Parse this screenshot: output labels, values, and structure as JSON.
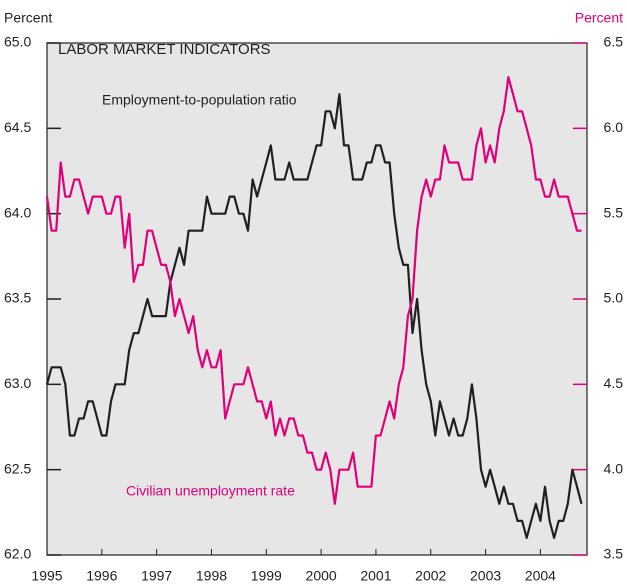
{
  "chart_data": {
    "type": "line",
    "title": "LABOR MARKET INDICATORS",
    "y_label": "Percent",
    "y2_label": "Percent",
    "annotations": [
      "Employment-to-population ratio",
      "Civilian unemployment rate"
    ],
    "x": [
      1995,
      1995.083,
      1995.167,
      1995.25,
      1995.333,
      1995.417,
      1995.5,
      1995.583,
      1995.667,
      1995.75,
      1995.833,
      1995.917,
      1996,
      1996.083,
      1996.167,
      1996.25,
      1996.333,
      1996.417,
      1996.5,
      1996.583,
      1996.667,
      1996.75,
      1996.833,
      1996.917,
      1997,
      1997.083,
      1997.167,
      1997.25,
      1997.333,
      1997.417,
      1997.5,
      1997.583,
      1997.667,
      1997.75,
      1997.833,
      1997.917,
      1998,
      1998.083,
      1998.167,
      1998.25,
      1998.333,
      1998.417,
      1998.5,
      1998.583,
      1998.667,
      1998.75,
      1998.833,
      1998.917,
      1999,
      1999.083,
      1999.167,
      1999.25,
      1999.333,
      1999.417,
      1999.5,
      1999.583,
      1999.667,
      1999.75,
      1999.833,
      1999.917,
      2000,
      2000.083,
      2000.167,
      2000.25,
      2000.333,
      2000.417,
      2000.5,
      2000.583,
      2000.667,
      2000.75,
      2000.833,
      2000.917,
      2001,
      2001.083,
      2001.167,
      2001.25,
      2001.333,
      2001.417,
      2001.5,
      2001.583,
      2001.667,
      2001.75,
      2001.833,
      2001.917,
      2002,
      2002.083,
      2002.167,
      2002.25,
      2002.333,
      2002.417,
      2002.5,
      2002.583,
      2002.667,
      2002.75,
      2002.833,
      2002.917,
      2003,
      2003.083,
      2003.167,
      2003.25,
      2003.333,
      2003.417,
      2003.5,
      2003.583,
      2003.667,
      2003.75,
      2003.833,
      2003.917,
      2004,
      2004.083,
      2004.167,
      2004.25,
      2004.333,
      2004.417,
      2004.5,
      2004.583,
      2004.667,
      2004.75
    ],
    "series": [
      {
        "name": "Employment-to-population ratio",
        "color": "#231f20",
        "axis": "y",
        "values": [
          63.0,
          63.1,
          63.1,
          63.1,
          63.0,
          62.7,
          62.7,
          62.8,
          62.8,
          62.9,
          62.9,
          62.8,
          62.7,
          62.7,
          62.9,
          63.0,
          63.0,
          63.0,
          63.2,
          63.3,
          63.3,
          63.4,
          63.5,
          63.4,
          63.4,
          63.4,
          63.4,
          63.6,
          63.7,
          63.8,
          63.7,
          63.9,
          63.9,
          63.9,
          63.9,
          64.1,
          64.0,
          64.0,
          64.0,
          64.0,
          64.1,
          64.1,
          64.0,
          64.0,
          63.9,
          64.2,
          64.1,
          64.2,
          64.3,
          64.4,
          64.2,
          64.2,
          64.2,
          64.3,
          64.2,
          64.2,
          64.2,
          64.2,
          64.3,
          64.4,
          64.4,
          64.6,
          64.6,
          64.5,
          64.7,
          64.4,
          64.4,
          64.2,
          64.2,
          64.2,
          64.3,
          64.3,
          64.4,
          64.4,
          64.3,
          64.3,
          64.0,
          63.8,
          63.7,
          63.7,
          63.3,
          63.5,
          63.2,
          63.0,
          62.9,
          62.7,
          62.9,
          62.8,
          62.7,
          62.8,
          62.7,
          62.7,
          62.8,
          63.0,
          62.8,
          62.5,
          62.4,
          62.5,
          62.4,
          62.3,
          62.4,
          62.3,
          62.3,
          62.2,
          62.2,
          62.1,
          62.2,
          62.3,
          62.2,
          62.4,
          62.2,
          62.1,
          62.2,
          62.2,
          62.3,
          62.5,
          62.4,
          62.3
        ]
      },
      {
        "name": "Civilian unemployment rate",
        "color": "#e0007a",
        "axis": "y2",
        "values": [
          5.6,
          5.4,
          5.4,
          5.8,
          5.6,
          5.6,
          5.7,
          5.7,
          5.6,
          5.5,
          5.6,
          5.6,
          5.6,
          5.5,
          5.5,
          5.6,
          5.6,
          5.3,
          5.5,
          5.1,
          5.2,
          5.2,
          5.4,
          5.4,
          5.3,
          5.2,
          5.2,
          5.1,
          4.9,
          5.0,
          4.9,
          4.8,
          4.9,
          4.7,
          4.6,
          4.7,
          4.6,
          4.6,
          4.7,
          4.3,
          4.4,
          4.5,
          4.5,
          4.5,
          4.6,
          4.5,
          4.4,
          4.4,
          4.3,
          4.4,
          4.2,
          4.3,
          4.2,
          4.3,
          4.3,
          4.2,
          4.2,
          4.1,
          4.1,
          4.0,
          4.0,
          4.1,
          4.0,
          3.8,
          4.0,
          4.0,
          4.0,
          4.1,
          3.9,
          3.9,
          3.9,
          3.9,
          4.2,
          4.2,
          4.3,
          4.4,
          4.3,
          4.5,
          4.6,
          4.9,
          5.0,
          5.4,
          5.6,
          5.7,
          5.6,
          5.7,
          5.7,
          5.9,
          5.8,
          5.8,
          5.8,
          5.7,
          5.7,
          5.7,
          5.9,
          6.0,
          5.8,
          5.9,
          5.8,
          6.0,
          6.1,
          6.3,
          6.2,
          6.1,
          6.1,
          6.0,
          5.9,
          5.7,
          5.7,
          5.6,
          5.6,
          5.7,
          5.6,
          5.6,
          5.6,
          5.5,
          5.4,
          5.4
        ]
      }
    ],
    "xlim": [
      1995,
      2004.85
    ],
    "xticks": [
      1995,
      1996,
      1997,
      1998,
      1999,
      2000,
      2001,
      2002,
      2003,
      2004
    ],
    "ylim": [
      62,
      65
    ],
    "yticks": [
      {
        "value": 62,
        "label": "62.0"
      },
      62.5,
      {
        "value": 63,
        "label": "63.0"
      },
      63.5,
      {
        "value": 64,
        "label": "64.0"
      },
      64.5,
      {
        "value": 65,
        "label": "65.0"
      }
    ],
    "y2lim": [
      3.5,
      6.5
    ],
    "y2ticks": [
      3.5,
      {
        "value": 4,
        "label": "4.0"
      },
      4.5,
      {
        "value": 5,
        "label": "5.0"
      },
      5.5,
      {
        "value": 6,
        "label": "6.0"
      },
      6.5
    ],
    "y2_color": "#e0007a",
    "background": "#e6e6e6",
    "grid": false
  }
}
